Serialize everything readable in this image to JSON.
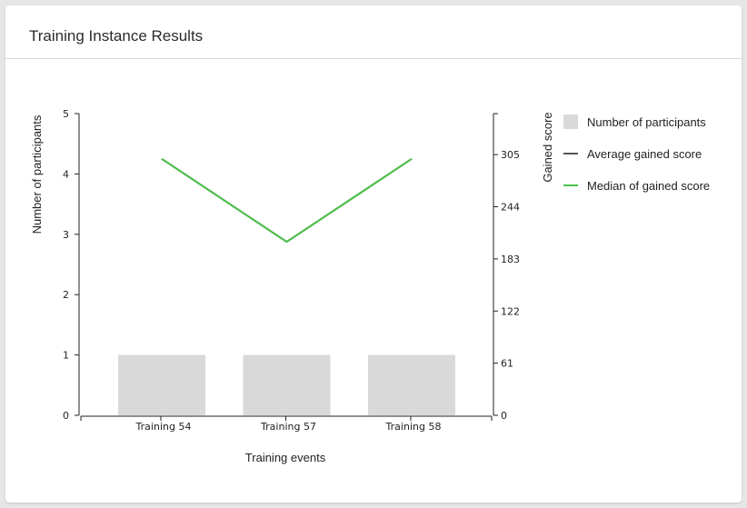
{
  "card": {
    "title": "Training Instance Results"
  },
  "chart_data": {
    "type": "bar",
    "categories": [
      "Training 54",
      "Training 57",
      "Training 58"
    ],
    "xlabel": "Training events",
    "ylabel": "Number of participants",
    "y2label": "Gained score",
    "ylim": [
      0,
      5
    ],
    "yticks": [
      "0",
      "1",
      "2",
      "3",
      "4",
      "5"
    ],
    "y2lim": [
      0,
      353
    ],
    "y2ticks": [
      "0",
      "61",
      "122",
      "183",
      "244",
      "305"
    ],
    "grid": false,
    "legend_position": "right",
    "series": [
      {
        "name": "Number of participants",
        "kind": "bar",
        "axis": "left",
        "color": "#d9d9d9",
        "values": [
          1,
          1,
          1
        ]
      },
      {
        "name": "Average gained score",
        "kind": "line",
        "axis": "right",
        "color": "#555555",
        "values": [
          300,
          203,
          300
        ]
      },
      {
        "name": "Median of gained score",
        "kind": "line",
        "axis": "right",
        "color": "#4cc24a",
        "values": [
          300,
          203,
          300
        ]
      }
    ]
  }
}
